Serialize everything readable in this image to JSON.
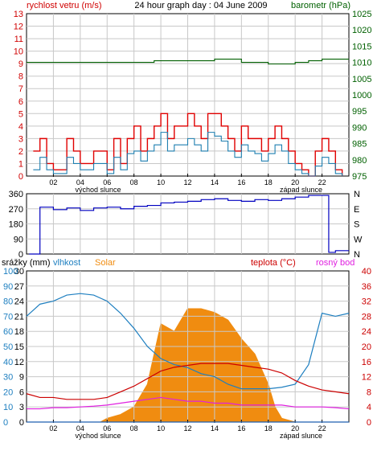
{
  "chart_data": [
    {
      "type": "line",
      "title": "24 hour graph day : 04 June 2009",
      "ylabel_left": "rychlost vetru (m/s)",
      "ylabel_right": "barometr (hPa)",
      "x_ticks": [
        "02",
        "04",
        "06",
        "08",
        "10",
        "12",
        "14",
        "16",
        "18",
        "20",
        "22"
      ],
      "x_annotations": {
        "sunrise": "východ slunce",
        "sunset": "západ slunce"
      },
      "ylim_left": [
        0,
        13
      ],
      "ylim_right": [
        975,
        1025
      ],
      "y_ticks_left": [
        "0",
        "1",
        "2",
        "3",
        "4",
        "5",
        "6",
        "7",
        "8",
        "9",
        "10",
        "11",
        "12",
        "13"
      ],
      "y_ticks_right": [
        "975",
        "980",
        "985",
        "990",
        "995",
        "1000",
        "1005",
        "1010",
        "1015",
        "1020",
        "1025"
      ],
      "grid": true,
      "colors": {
        "gust": "#e00000",
        "wind": "#1e7fb0",
        "pressure": "#006000",
        "left_axis": "#d00000",
        "right_axis": "#006000"
      },
      "series": [
        {
          "name": "gust",
          "unit": "m/s",
          "x": [
            0.5,
            1,
            1.5,
            2,
            3,
            3.5,
            4,
            5,
            6,
            6.5,
            7,
            7.5,
            8,
            8.5,
            9,
            9.5,
            10,
            10.5,
            11,
            11.5,
            12,
            12.5,
            13,
            13.5,
            14,
            14.5,
            15,
            15.5,
            16,
            16.5,
            17,
            17.5,
            18,
            18.5,
            19,
            19.5,
            20,
            20.5,
            21,
            21.5,
            22,
            22.5,
            23,
            23.5
          ],
          "values": [
            2,
            3,
            1,
            0.5,
            3,
            2,
            1,
            2,
            0.5,
            3,
            1,
            3,
            4,
            2,
            3,
            4,
            5,
            3,
            4,
            4,
            5,
            4,
            3,
            5,
            5,
            4,
            3,
            2,
            4,
            3,
            3,
            2,
            3,
            4,
            3,
            2,
            1,
            0.5,
            0,
            2,
            3,
            2,
            0.5,
            0
          ]
        },
        {
          "name": "wind",
          "unit": "m/s",
          "x": [
            0.5,
            1,
            1.5,
            2,
            3,
            3.5,
            4,
            5,
            6,
            6.5,
            7,
            7.5,
            8,
            8.5,
            9,
            9.5,
            10,
            10.5,
            11,
            11.5,
            12,
            12.5,
            13,
            13.5,
            14,
            14.5,
            15,
            15.5,
            16,
            16.5,
            17,
            17.5,
            18,
            18.5,
            19,
            19.5,
            20,
            20.5,
            21,
            21.5,
            22,
            22.5,
            23,
            23.5
          ],
          "values": [
            0.5,
            1.5,
            0.5,
            0.2,
            1.5,
            1,
            0.5,
            1,
            0.2,
            1.5,
            0.5,
            1.8,
            2,
            1.2,
            2,
            2.5,
            3.5,
            2,
            2.5,
            2.5,
            3,
            2.5,
            2,
            3.5,
            3.2,
            2.8,
            2,
            1.5,
            2.5,
            2,
            1.8,
            1.2,
            1.8,
            2.5,
            2,
            1,
            0.5,
            0.2,
            0,
            0.8,
            1.5,
            1,
            0.2,
            0
          ]
        },
        {
          "name": "pressure",
          "unit": "hPa",
          "x": [
            0,
            7,
            8.5,
            9.5,
            11,
            12,
            13,
            14,
            15,
            16,
            17,
            18,
            19,
            20,
            21,
            22,
            23,
            24
          ],
          "values": [
            1010,
            1010,
            1010,
            1010.5,
            1010.5,
            1010.5,
            1010.5,
            1011,
            1011,
            1010,
            1010,
            1009.5,
            1009.5,
            1010,
            1010.5,
            1011,
            1011,
            1011
          ]
        }
      ]
    },
    {
      "type": "line",
      "x_ticks": [
        "02",
        "04",
        "06",
        "08",
        "10",
        "12",
        "14",
        "16",
        "18",
        "20",
        "22"
      ],
      "ylim_left": [
        0,
        360
      ],
      "y_ticks_left": [
        "0",
        "90",
        "180",
        "270",
        "360"
      ],
      "y_ticks_right": [
        "N",
        "W",
        "S",
        "E",
        "N"
      ],
      "grid": true,
      "colors": {
        "direction": "#0000c0"
      },
      "series": [
        {
          "name": "direction",
          "unit": "deg",
          "x": [
            0.2,
            1,
            2,
            3,
            4,
            5,
            6,
            7,
            8,
            9,
            10,
            11,
            12,
            13,
            14,
            15,
            16,
            17,
            18,
            19,
            20,
            21,
            22,
            22.5,
            23,
            24
          ],
          "values": [
            0,
            280,
            265,
            275,
            260,
            275,
            280,
            270,
            285,
            290,
            305,
            310,
            315,
            325,
            330,
            320,
            315,
            325,
            320,
            330,
            340,
            350,
            350,
            10,
            20,
            20
          ]
        }
      ]
    },
    {
      "type": "line",
      "header_labels": [
        "srážky (mm)",
        "vlhkost",
        "Solar",
        "teplota (°C)",
        "rosný bod"
      ],
      "x_ticks": [
        "02",
        "04",
        "06",
        "08",
        "10",
        "12",
        "14",
        "16",
        "18",
        "20",
        "22"
      ],
      "x_annotations": {
        "sunrise": "východ slunce",
        "sunset": "západ slunce"
      },
      "axes": {
        "rain": {
          "ylim": [
            0,
            30
          ],
          "ticks": [
            "0",
            "3",
            "6",
            "9",
            "12",
            "15",
            "18",
            "21",
            "24",
            "27",
            "30"
          ]
        },
        "humidity": {
          "ylim": [
            0,
            100
          ],
          "ticks": [
            "0",
            "10",
            "20",
            "30",
            "40",
            "50",
            "60",
            "70",
            "80",
            "90",
            "100"
          ]
        },
        "temperature": {
          "ylim": [
            0,
            40
          ],
          "ticks": [
            "0",
            "4",
            "8",
            "12",
            "16",
            "20",
            "24",
            "28",
            "32",
            "36",
            "40"
          ]
        }
      },
      "grid": true,
      "colors": {
        "rain": "#1e5fb0",
        "humidity": "#1e7fc0",
        "solar": "#f08c10",
        "temperature": "#cc0000",
        "dew_point": "#e020e0"
      },
      "series": [
        {
          "name": "vlhkost",
          "axis": "humidity",
          "x": [
            0,
            1,
            2,
            3,
            4,
            5,
            6,
            7,
            8,
            9,
            10,
            11,
            12,
            13,
            14,
            15,
            16,
            17,
            18,
            19,
            20,
            21,
            22,
            23,
            24
          ],
          "values": [
            70,
            78,
            80,
            84,
            85,
            84,
            80,
            72,
            62,
            50,
            42,
            38,
            36,
            32,
            30,
            25,
            22,
            22,
            22,
            23,
            25,
            38,
            72,
            70,
            72
          ]
        },
        {
          "name": "teplota",
          "axis": "temperature",
          "x": [
            0,
            1,
            2,
            3,
            4,
            5,
            6,
            7,
            8,
            9,
            10,
            11,
            12,
            13,
            14,
            15,
            16,
            17,
            18,
            19,
            20,
            21,
            22,
            23,
            24
          ],
          "values": [
            7.5,
            6.5,
            6.5,
            6,
            6,
            6,
            6.5,
            8,
            9.5,
            11.5,
            13.5,
            14.5,
            15,
            15.5,
            15.5,
            15.5,
            15,
            14.5,
            14,
            13,
            11,
            9.5,
            8.5,
            8,
            7.5
          ]
        },
        {
          "name": "rosný bod",
          "axis": "temperature",
          "x": [
            0,
            1,
            2,
            3,
            4,
            5,
            6,
            7,
            8,
            9,
            10,
            11,
            12,
            13,
            14,
            15,
            16,
            17,
            18,
            19,
            20,
            21,
            22,
            23,
            24
          ],
          "values": [
            3.5,
            3.5,
            3.8,
            3.8,
            4,
            4.2,
            4.5,
            5,
            5.5,
            6,
            6.5,
            6,
            5.5,
            5.5,
            5,
            5,
            4.5,
            4.5,
            4.5,
            4.5,
            4,
            4,
            4,
            3.8,
            3.5
          ]
        },
        {
          "name": "Solar",
          "axis": "temperature",
          "x": [
            0,
            5.5,
            6,
            7,
            8,
            9,
            10,
            11,
            12,
            12.5,
            13,
            14,
            15,
            16,
            17,
            18,
            18.5,
            19,
            20,
            24
          ],
          "values": [
            0,
            0,
            1,
            2,
            4,
            10,
            26,
            24,
            30,
            30,
            30,
            29,
            27,
            22,
            18,
            10,
            4,
            1,
            0,
            0
          ]
        },
        {
          "name": "srážky",
          "axis": "rain",
          "x": [
            0,
            24
          ],
          "values": [
            0,
            0
          ]
        }
      ]
    }
  ]
}
